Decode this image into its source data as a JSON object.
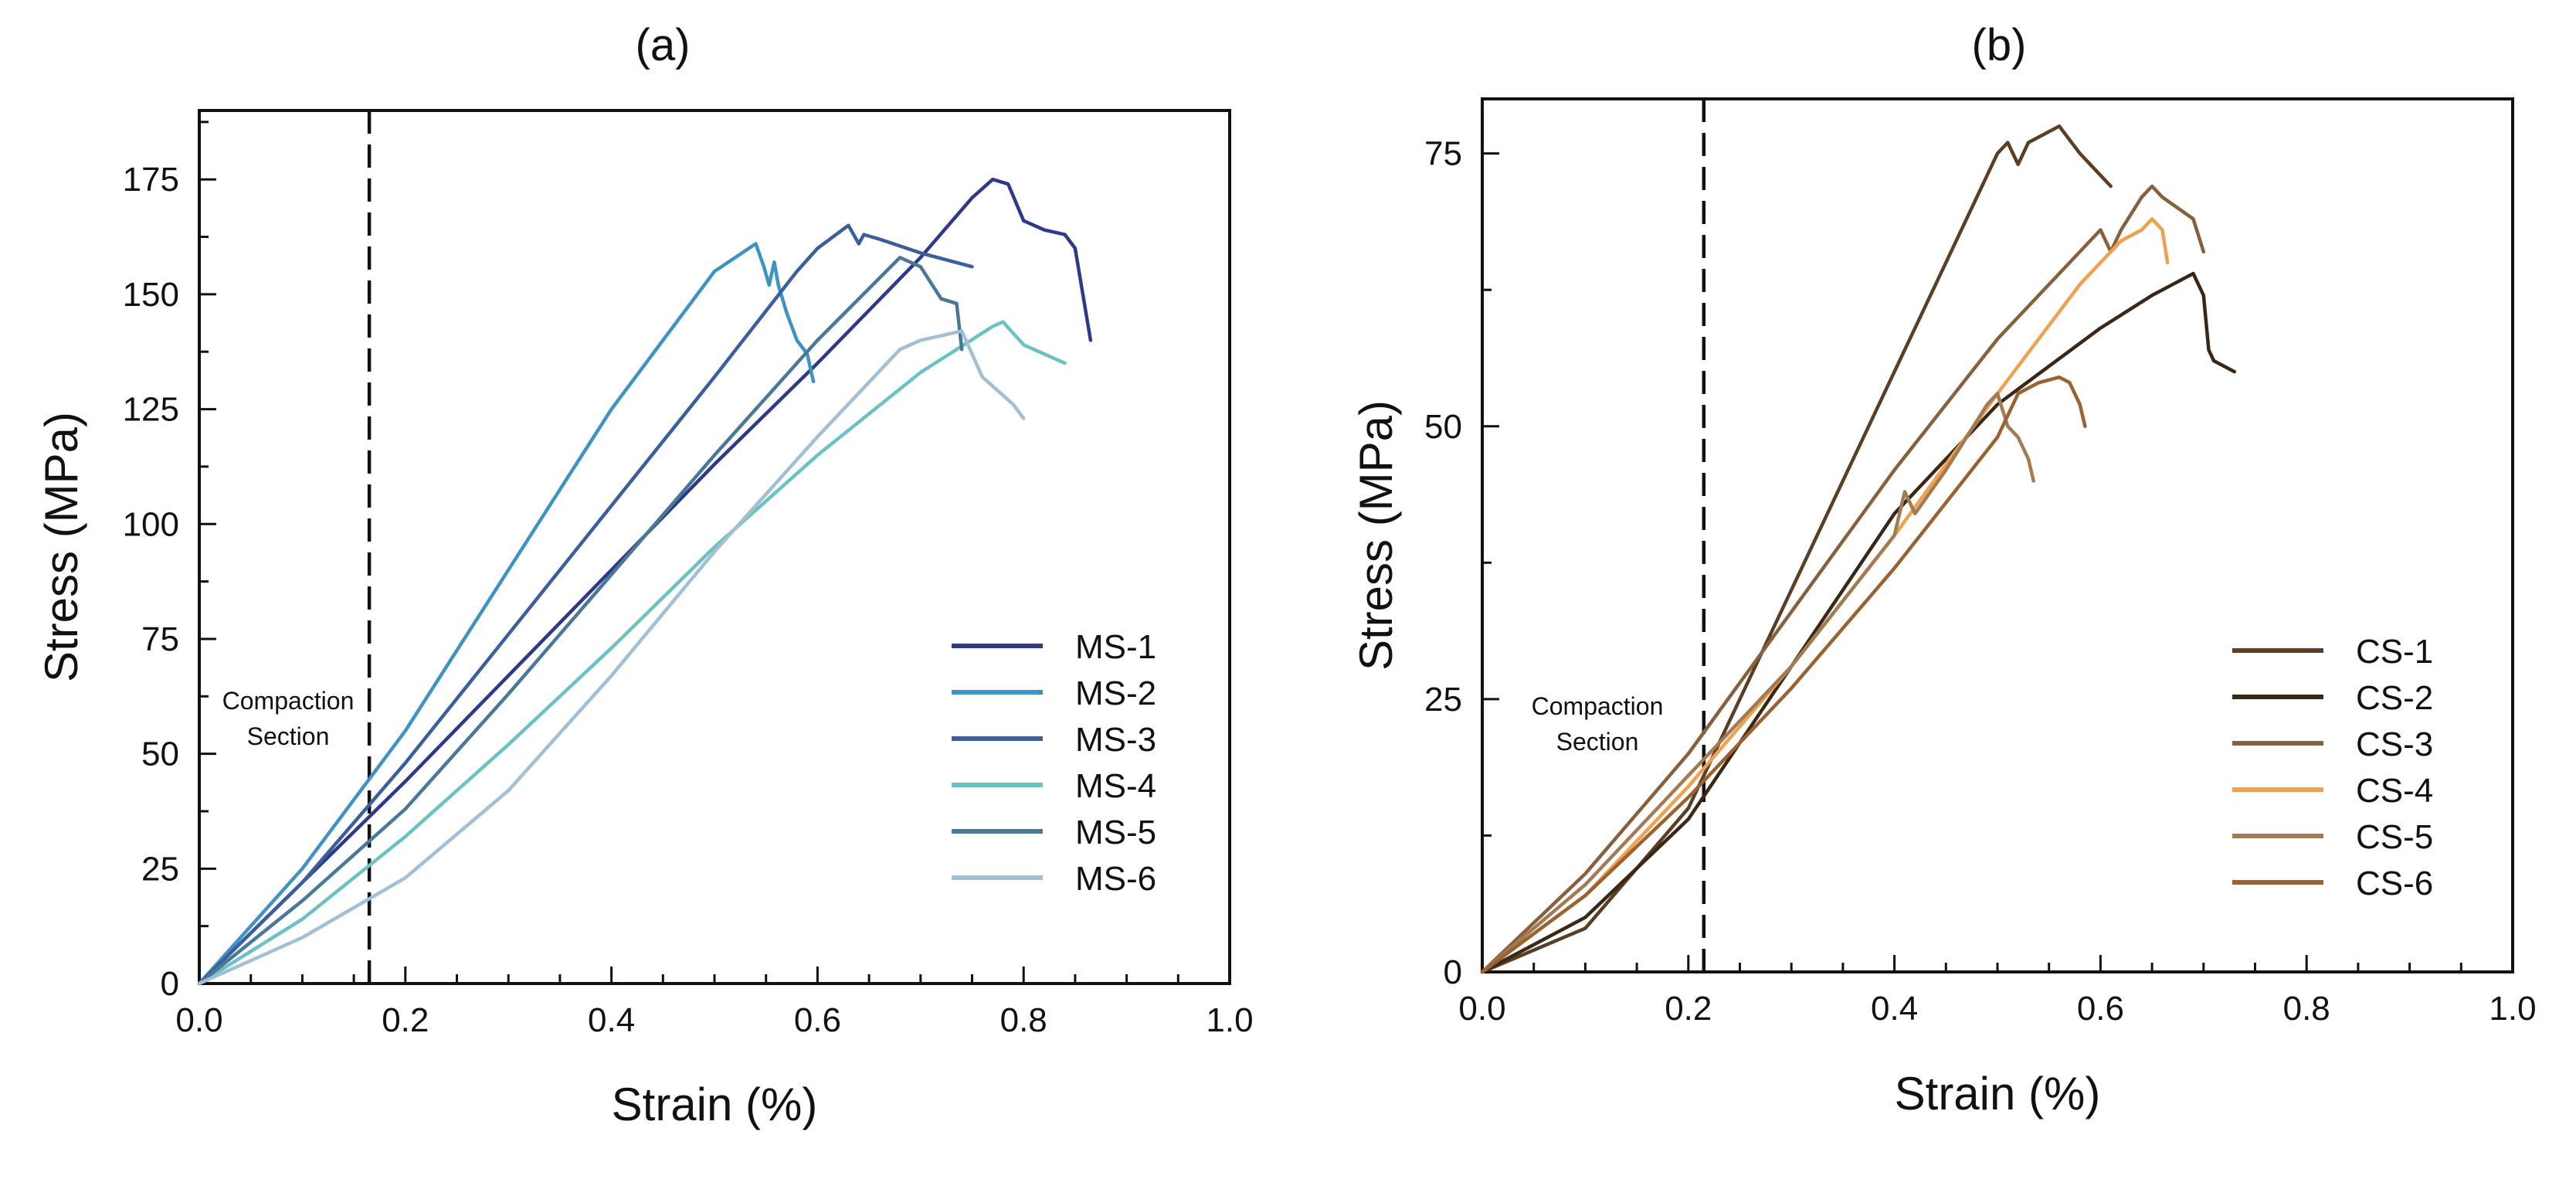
{
  "chart_data": [
    {
      "type": "line",
      "panel_label": "(a)",
      "xlabel": "Strain (%)",
      "ylabel": "Stress (MPa)",
      "xlim": [
        0,
        1.0
      ],
      "ylim": [
        0,
        190
      ],
      "xticks": [
        0.0,
        0.2,
        0.4,
        0.6,
        0.8,
        1.0
      ],
      "xtick_labels": [
        "0.0",
        "0.2",
        "0.4",
        "0.6",
        "0.8",
        "1.0"
      ],
      "yticks": [
        0,
        25,
        50,
        75,
        100,
        125,
        150,
        175
      ],
      "ytick_labels": [
        "0",
        "25",
        "50",
        "75",
        "100",
        "125",
        "150",
        "175"
      ],
      "grid": false,
      "legend_position": "bottom-right",
      "reference_line": {
        "x": 0.165,
        "style": "dashed"
      },
      "annotation": [
        "Compaction",
        "Section"
      ],
      "series": [
        {
          "name": "MS-1",
          "color": "#2e3a87",
          "x": [
            0,
            0.1,
            0.2,
            0.3,
            0.4,
            0.5,
            0.6,
            0.7,
            0.75,
            0.77,
            0.785,
            0.8,
            0.82,
            0.84,
            0.85,
            0.865
          ],
          "y": [
            0,
            22,
            44,
            67,
            90,
            113,
            135,
            158,
            171,
            175,
            174,
            166,
            164,
            163,
            160,
            140
          ]
        },
        {
          "name": "MS-2",
          "color": "#3f93c4",
          "x": [
            0,
            0.1,
            0.2,
            0.3,
            0.4,
            0.5,
            0.54,
            0.548,
            0.553,
            0.558,
            0.562,
            0.57,
            0.58,
            0.59,
            0.596
          ],
          "y": [
            0,
            25,
            55,
            90,
            125,
            155,
            161,
            156,
            152,
            157,
            152,
            146,
            140,
            137,
            131
          ]
        },
        {
          "name": "MS-3",
          "color": "#3a5f9c",
          "x": [
            0,
            0.1,
            0.2,
            0.3,
            0.4,
            0.5,
            0.58,
            0.6,
            0.63,
            0.64,
            0.645,
            0.66,
            0.7,
            0.75
          ],
          "y": [
            0,
            22,
            48,
            76,
            104,
            132,
            155,
            160,
            165,
            161,
            163,
            162,
            159,
            156
          ]
        },
        {
          "name": "MS-4",
          "color": "#6bc2c2",
          "x": [
            0,
            0.1,
            0.2,
            0.3,
            0.4,
            0.5,
            0.6,
            0.7,
            0.77,
            0.78,
            0.8,
            0.84
          ],
          "y": [
            0,
            14,
            32,
            52,
            73,
            95,
            115,
            133,
            143,
            144,
            139,
            135
          ]
        },
        {
          "name": "MS-5",
          "color": "#4a7899",
          "x": [
            0,
            0.1,
            0.2,
            0.3,
            0.4,
            0.5,
            0.6,
            0.68,
            0.7,
            0.72,
            0.735,
            0.74
          ],
          "y": [
            0,
            18,
            38,
            63,
            89,
            115,
            140,
            158,
            156,
            149,
            148,
            138
          ]
        },
        {
          "name": "MS-6",
          "color": "#a3bfd6",
          "x": [
            0,
            0.1,
            0.2,
            0.3,
            0.4,
            0.5,
            0.6,
            0.68,
            0.7,
            0.74,
            0.76,
            0.78,
            0.79,
            0.8
          ],
          "y": [
            0,
            10,
            23,
            42,
            67,
            94,
            119,
            138,
            140,
            142,
            132,
            128,
            126,
            123
          ]
        }
      ],
      "legend": [
        "MS-1",
        "MS-2",
        "MS-3",
        "MS-4",
        "MS-5",
        "MS-6"
      ]
    },
    {
      "type": "line",
      "panel_label": "(b)",
      "xlabel": "Strain (%)",
      "ylabel": "Stress (MPa)",
      "xlim": [
        0,
        1.0
      ],
      "ylim": [
        0,
        80
      ],
      "xticks": [
        0.0,
        0.2,
        0.4,
        0.6,
        0.8,
        1.0
      ],
      "xtick_labels": [
        "0.0",
        "0.2",
        "0.4",
        "0.6",
        "0.8",
        "1.0"
      ],
      "yticks": [
        0,
        25,
        50,
        75
      ],
      "ytick_labels": [
        "0",
        "25",
        "50",
        "75"
      ],
      "grid": false,
      "legend_position": "bottom-right",
      "reference_line": {
        "x": 0.215,
        "style": "dashed"
      },
      "annotation": [
        "Compaction",
        "Section"
      ],
      "series": [
        {
          "name": "CS-1",
          "color": "#5a3f26",
          "x": [
            0,
            0.1,
            0.2,
            0.3,
            0.4,
            0.5,
            0.51,
            0.52,
            0.53,
            0.55,
            0.56,
            0.58,
            0.6,
            0.61
          ],
          "y": [
            0,
            4,
            15,
            35,
            55,
            75,
            76,
            74,
            76,
            77,
            77.5,
            75,
            73,
            72
          ]
        },
        {
          "name": "CS-2",
          "color": "#3a2716",
          "x": [
            0,
            0.1,
            0.2,
            0.3,
            0.4,
            0.5,
            0.6,
            0.65,
            0.69,
            0.7,
            0.705,
            0.71,
            0.73
          ],
          "y": [
            0,
            5,
            14,
            28,
            42,
            52,
            59,
            62,
            64,
            62,
            57,
            56,
            55
          ]
        },
        {
          "name": "CS-3",
          "color": "#87613d",
          "x": [
            0,
            0.1,
            0.2,
            0.3,
            0.4,
            0.5,
            0.6,
            0.61,
            0.62,
            0.64,
            0.65,
            0.66,
            0.69,
            0.7
          ],
          "y": [
            0,
            9,
            20,
            33,
            46,
            58,
            68,
            66,
            68,
            71,
            72,
            71,
            69,
            66
          ]
        },
        {
          "name": "CS-4",
          "color": "#f0a14e",
          "x": [
            0,
            0.1,
            0.2,
            0.3,
            0.4,
            0.5,
            0.58,
            0.6,
            0.62,
            0.64,
            0.65,
            0.66,
            0.665
          ],
          "y": [
            0,
            7,
            17,
            28,
            40,
            53,
            63,
            65,
            67,
            68,
            69,
            68,
            65
          ]
        },
        {
          "name": "CS-5",
          "color": "#a37b52",
          "x": [
            0,
            0.1,
            0.2,
            0.3,
            0.4,
            0.41,
            0.42,
            0.45,
            0.49,
            0.5,
            0.51,
            0.52,
            0.53,
            0.535
          ],
          "y": [
            0,
            8,
            18,
            28,
            40,
            44,
            42,
            46,
            52,
            53,
            50,
            49,
            47,
            45
          ]
        },
        {
          "name": "CS-6",
          "color": "#9a6230",
          "x": [
            0,
            0.1,
            0.2,
            0.3,
            0.4,
            0.5,
            0.52,
            0.54,
            0.56,
            0.57,
            0.58,
            0.585
          ],
          "y": [
            0,
            7,
            16,
            26,
            37,
            49,
            53,
            54,
            54.5,
            54,
            52,
            50
          ]
        }
      ],
      "legend": [
        "CS-1",
        "CS-2",
        "CS-3",
        "CS-4",
        "CS-5",
        "CS-6"
      ]
    }
  ]
}
